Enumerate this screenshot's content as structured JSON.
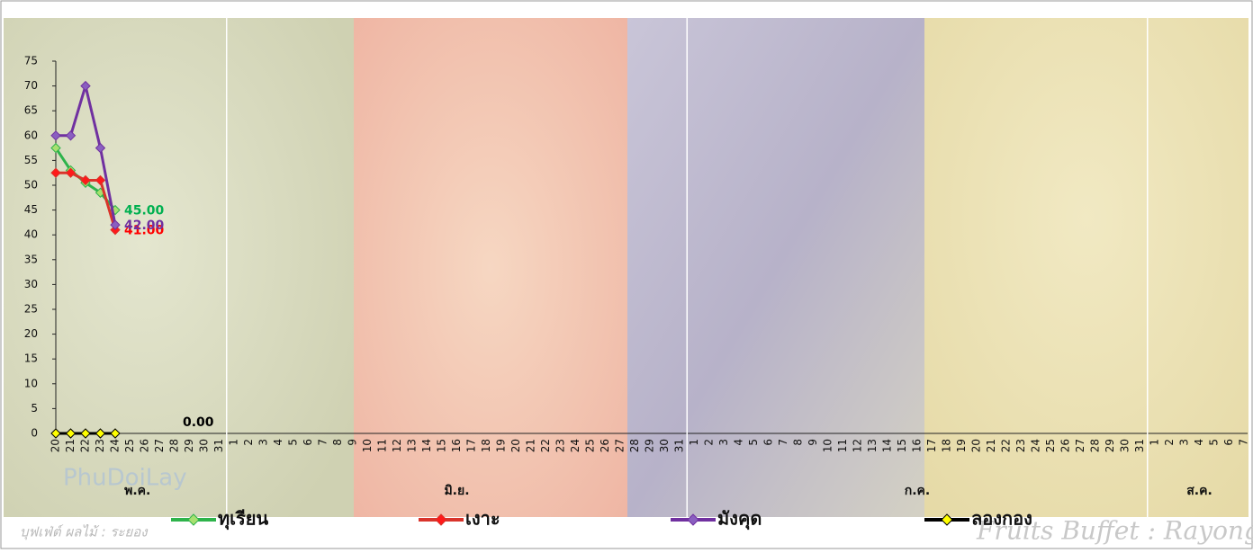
{
  "chart_data": {
    "type": "line",
    "categories": [
      "20",
      "21",
      "22",
      "23",
      "24",
      "25",
      "26",
      "27",
      "28",
      "29",
      "30",
      "31",
      "1",
      "2",
      "3",
      "4",
      "5",
      "6",
      "7",
      "8",
      "9",
      "10",
      "11",
      "12",
      "13",
      "14",
      "15",
      "16",
      "17",
      "18",
      "19",
      "20",
      "21",
      "22",
      "23",
      "24",
      "25",
      "26",
      "27",
      "28",
      "29",
      "30",
      "31",
      "1",
      "2",
      "3",
      "4",
      "5",
      "6",
      "7",
      "8",
      "9",
      "10",
      "11",
      "12",
      "13",
      "14",
      "15",
      "16",
      "17",
      "18",
      "19",
      "20",
      "21",
      "22",
      "23",
      "24",
      "25",
      "26",
      "27",
      "28",
      "29",
      "30",
      "31",
      "1",
      "2",
      "3",
      "4",
      "5",
      "6",
      "7"
    ],
    "x_groups": [
      "พ.ค.",
      "มิ.ย.",
      "ก.ค.",
      "ส.ค."
    ],
    "ylim": [
      0,
      75
    ],
    "yticks": [
      0,
      5,
      10,
      15,
      20,
      25,
      30,
      35,
      40,
      45,
      50,
      55,
      60,
      65,
      70,
      75
    ],
    "grid": false,
    "series": [
      {
        "name": "ทุเรียน",
        "color": "#2eb34b",
        "marker_color": "#a8e070",
        "label_color": "#00b050",
        "values": [
          57.5,
          53,
          50.5,
          48.5,
          45,
          null,
          null,
          null,
          null,
          null,
          null,
          null,
          null,
          null,
          null,
          null,
          null,
          null,
          null,
          null,
          null,
          null,
          null,
          null,
          null,
          null,
          null,
          null,
          null,
          null,
          null,
          null,
          null,
          null,
          null,
          null,
          null,
          null,
          null,
          null,
          null,
          null,
          null,
          null,
          null,
          null,
          null,
          null,
          null,
          null,
          null,
          null,
          null,
          null,
          null,
          null,
          null,
          null,
          null,
          null,
          null,
          null,
          null,
          null,
          null,
          null,
          null,
          null,
          null,
          null,
          null,
          null,
          null,
          null,
          null,
          null,
          null,
          null,
          null,
          null,
          null
        ],
        "value_labels": [
          null,
          null,
          null,
          null,
          "45.00",
          null,
          null,
          null,
          null,
          null,
          null,
          null,
          null,
          null,
          null,
          null,
          null,
          null,
          null,
          null,
          null,
          null,
          null,
          null,
          null,
          null,
          null,
          null,
          null,
          null,
          null,
          null,
          null,
          null,
          null,
          null,
          null,
          null,
          null,
          null,
          null,
          null,
          null,
          null,
          null,
          null,
          null,
          null,
          null,
          null,
          null,
          null,
          null,
          null,
          null,
          null,
          null,
          null,
          null,
          null,
          null,
          null,
          null,
          null,
          null,
          null,
          null,
          null,
          null,
          null,
          null,
          null,
          null,
          null,
          null,
          null,
          null,
          null,
          null,
          null,
          null
        ]
      },
      {
        "name": "เงาะ",
        "color": "#d9342b",
        "marker_color": "#ff1a1a",
        "label_color": "#ff0000",
        "values": [
          52.5,
          52.5,
          51,
          51,
          41,
          null,
          null,
          null,
          null,
          null,
          null,
          null,
          null,
          null,
          null,
          null,
          null,
          null,
          null,
          null,
          null,
          null,
          null,
          null,
          null,
          null,
          null,
          null,
          null,
          null,
          null,
          null,
          null,
          null,
          null,
          null,
          null,
          null,
          null,
          null,
          null,
          null,
          null,
          null,
          null,
          null,
          null,
          null,
          null,
          null,
          null,
          null,
          null,
          null,
          null,
          null,
          null,
          null,
          null,
          null,
          null,
          null,
          null,
          null,
          null,
          null,
          null,
          null,
          null,
          null,
          null,
          null,
          null,
          null,
          null,
          null,
          null,
          null,
          null,
          null,
          null
        ],
        "value_labels": [
          null,
          null,
          null,
          null,
          "41.00",
          null,
          null,
          null,
          null,
          null,
          null,
          null,
          null,
          null,
          null,
          null,
          null,
          null,
          null,
          null,
          null,
          null,
          null,
          null,
          null,
          null,
          null,
          null,
          null,
          null,
          null,
          null,
          null,
          null,
          null,
          null,
          null,
          null,
          null,
          null,
          null,
          null,
          null,
          null,
          null,
          null,
          null,
          null,
          null,
          null,
          null,
          null,
          null,
          null,
          null,
          null,
          null,
          null,
          null,
          null,
          null,
          null,
          null,
          null,
          null,
          null,
          null,
          null,
          null,
          null,
          null,
          null,
          null,
          null,
          null,
          null,
          null,
          null,
          null,
          null,
          null
        ]
      },
      {
        "name": "มังคุด",
        "color": "#7030a0",
        "marker_color": "#8a5fc0",
        "label_color": "#7030a0",
        "values": [
          60,
          60,
          70,
          57.5,
          42,
          null,
          null,
          null,
          null,
          null,
          null,
          null,
          null,
          null,
          null,
          null,
          null,
          null,
          null,
          null,
          null,
          null,
          null,
          null,
          null,
          null,
          null,
          null,
          null,
          null,
          null,
          null,
          null,
          null,
          null,
          null,
          null,
          null,
          null,
          null,
          null,
          null,
          null,
          null,
          null,
          null,
          null,
          null,
          null,
          null,
          null,
          null,
          null,
          null,
          null,
          null,
          null,
          null,
          null,
          null,
          null,
          null,
          null,
          null,
          null,
          null,
          null,
          null,
          null,
          null,
          null,
          null,
          null,
          null,
          null,
          null,
          null,
          null,
          null,
          null,
          null
        ],
        "value_labels": [
          null,
          null,
          null,
          null,
          "42.00",
          null,
          null,
          null,
          null,
          null,
          null,
          null,
          null,
          null,
          null,
          null,
          null,
          null,
          null,
          null,
          null,
          null,
          null,
          null,
          null,
          null,
          null,
          null,
          null,
          null,
          null,
          null,
          null,
          null,
          null,
          null,
          null,
          null,
          null,
          null,
          null,
          null,
          null,
          null,
          null,
          null,
          null,
          null,
          null,
          null,
          null,
          null,
          null,
          null,
          null,
          null,
          null,
          null,
          null,
          null,
          null,
          null,
          null,
          null,
          null,
          null,
          null,
          null,
          null,
          null,
          null,
          null,
          null,
          null,
          null,
          null,
          null,
          null,
          null,
          null,
          null
        ]
      },
      {
        "name": "ลองกอง",
        "color": "#000000",
        "marker_color": "#ffff00",
        "label_color": "#000000",
        "values": [
          0,
          0,
          0,
          0,
          0,
          null,
          null,
          null,
          null,
          null,
          null,
          null,
          null,
          null,
          null,
          null,
          null,
          null,
          null,
          null,
          null,
          null,
          null,
          null,
          null,
          null,
          null,
          null,
          null,
          null,
          null,
          null,
          null,
          null,
          null,
          null,
          null,
          null,
          null,
          null,
          null,
          null,
          null,
          null,
          null,
          null,
          null,
          null,
          null,
          null,
          null,
          null,
          null,
          null,
          null,
          null,
          null,
          null,
          null,
          null,
          null,
          null,
          null,
          null,
          null,
          null,
          null,
          null,
          null,
          null,
          null,
          null,
          null,
          null,
          null,
          null,
          null,
          null,
          null,
          null,
          null
        ],
        "value_labels": [
          null,
          null,
          null,
          null,
          "0.00",
          null,
          null,
          null,
          null,
          null,
          null,
          null,
          null,
          null,
          null,
          null,
          null,
          null,
          null,
          null,
          null,
          null,
          null,
          null,
          null,
          null,
          null,
          null,
          null,
          null,
          null,
          null,
          null,
          null,
          null,
          null,
          null,
          null,
          null,
          null,
          null,
          null,
          null,
          null,
          null,
          null,
          null,
          null,
          null,
          null,
          null,
          null,
          null,
          null,
          null,
          null,
          null,
          null,
          null,
          null,
          null,
          null,
          null,
          null,
          null,
          null,
          null,
          null,
          null,
          null,
          null,
          null,
          null,
          null,
          null,
          null,
          null,
          null,
          null,
          null,
          null
        ]
      }
    ]
  },
  "watermarks": {
    "logo": "PhuDoiLay",
    "thai": "บุฟเฟ่ต์ ผลไม้ : ระยอง",
    "english": "Fruits Buffet : Rayong"
  }
}
